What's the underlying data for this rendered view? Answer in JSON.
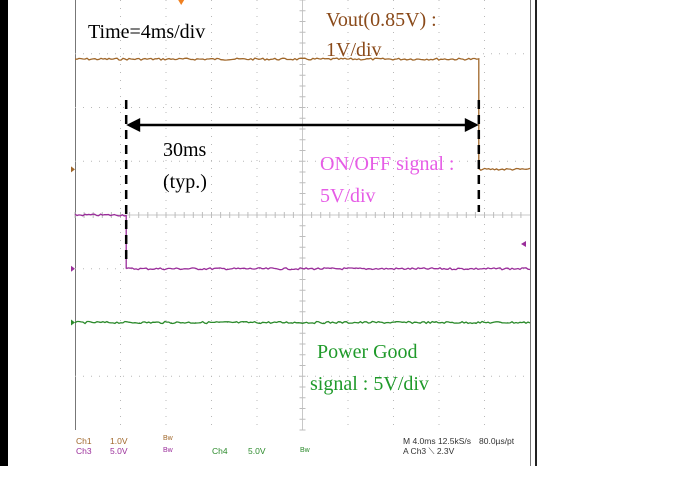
{
  "chart_data": {
    "type": "line",
    "title": "",
    "xlabel": "",
    "ylabel": "",
    "x_unit": "ms",
    "xlim": [
      -20,
      20
    ],
    "ylim_div": [
      -4,
      4
    ],
    "grid": true,
    "series": [
      {
        "name": "Vout(0.85V) : 1V/div",
        "color": "#a0672a",
        "channel": "Ch1",
        "x": [
          -20,
          15.5,
          15.5,
          20
        ],
        "y_div": [
          2.9,
          2.9,
          0.85,
          0.85
        ]
      },
      {
        "name": "ON/OFF signal : 5V/div",
        "color": "#9a2d9a",
        "channel": "Ch3",
        "x": [
          -20,
          -15.5,
          -15.5,
          20
        ],
        "y_div": [
          0.0,
          0.0,
          -1.0,
          -1.0
        ]
      },
      {
        "name": "Power Good signal : 5V/div",
        "color": "#2b8a2b",
        "channel": "Ch4",
        "x": [
          -20,
          20
        ],
        "y_div": [
          -2.0,
          -2.0
        ]
      }
    ],
    "annotations": {
      "timebase": "Time=4ms/div",
      "vout_label_1": "Vout(0.85V) :",
      "vout_label_2": "1V/div",
      "interval_label_1": "30ms",
      "interval_label_2": "(typ.)",
      "interval_start_ms": -15.5,
      "interval_end_ms": 15.5,
      "onoff_label_1": "ON/OFF signal :",
      "onoff_label_2": "5V/div",
      "pg_label_1": "Power Good",
      "pg_label_2": "signal : 5V/div"
    },
    "status_bar": {
      "ch1": "Ch1",
      "ch1_scale": "1.0V",
      "ch1_bw": "Bw",
      "ch3": "Ch3",
      "ch3_scale": "5.0V",
      "ch3_bw": "Bw",
      "ch4": "Ch4",
      "ch4_scale": "5.0V",
      "ch4_bw": "Bw",
      "timebase": "M 4.0ms 12.5kS/s",
      "resolution": "80.0µs/pt",
      "trigger": "A  Ch3  ⟍  2.3V"
    }
  }
}
